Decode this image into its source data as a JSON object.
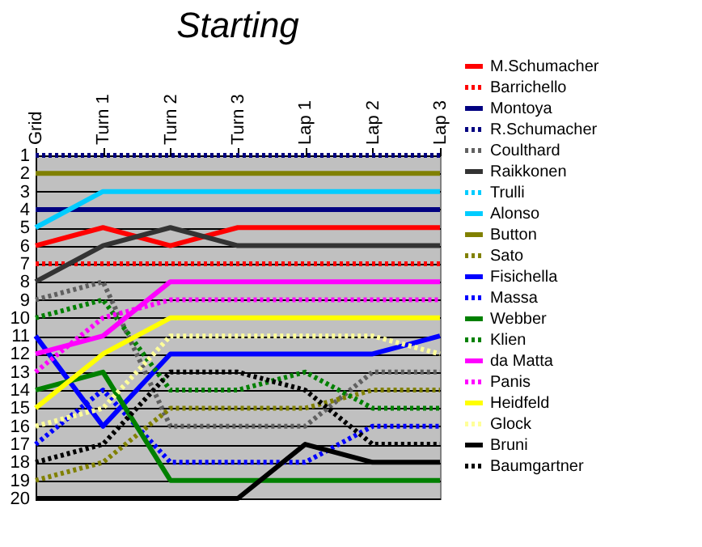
{
  "chart_data": {
    "type": "line",
    "title": "Starting",
    "categories": [
      "Grid",
      "Turn 1",
      "Turn 2",
      "Turn 3",
      "Lap 1",
      "Lap 2",
      "Lap 3"
    ],
    "ylim": [
      20,
      1
    ],
    "yticks": [
      1,
      2,
      3,
      4,
      5,
      6,
      7,
      8,
      9,
      10,
      11,
      12,
      13,
      14,
      15,
      16,
      17,
      18,
      19,
      20
    ],
    "grid": "y",
    "legend": "right",
    "marker": "none",
    "series": [
      {
        "name": "M.Schumacher",
        "color": "#ff0000",
        "line_style": "solid",
        "values": [
          6,
          5,
          6,
          5,
          5,
          5,
          5
        ]
      },
      {
        "name": "Barrichello",
        "color": "#ff0000",
        "line_style": "dotted",
        "values": [
          7,
          7,
          7,
          7,
          7,
          7,
          7
        ]
      },
      {
        "name": "Montoya",
        "color": "#000080",
        "line_style": "solid",
        "values": [
          4,
          4,
          4,
          4,
          4,
          4,
          4
        ]
      },
      {
        "name": "R.Schumacher",
        "color": "#000080",
        "line_style": "dotted",
        "values": [
          1,
          1,
          1,
          1,
          1,
          1,
          1
        ]
      },
      {
        "name": "Coulthard",
        "color": "#606060",
        "line_style": "dotted",
        "values": [
          9,
          8,
          16,
          16,
          16,
          13,
          13
        ]
      },
      {
        "name": "Raikkonen",
        "color": "#333333",
        "line_style": "solid",
        "values": [
          8,
          6,
          5,
          6,
          6,
          6,
          6
        ]
      },
      {
        "name": "Trulli",
        "color": "#00ccff",
        "line_style": "dotted",
        "values": [
          null,
          null,
          null,
          null,
          null,
          null,
          null
        ]
      },
      {
        "name": "Alonso",
        "color": "#00ccff",
        "line_style": "solid",
        "values": [
          5,
          3,
          3,
          3,
          3,
          3,
          3
        ]
      },
      {
        "name": "Button",
        "color": "#808000",
        "line_style": "solid",
        "values": [
          2,
          2,
          2,
          2,
          2,
          2,
          2
        ]
      },
      {
        "name": "Sato",
        "color": "#808000",
        "line_style": "dotted",
        "values": [
          19,
          18,
          15,
          15,
          15,
          14,
          14
        ]
      },
      {
        "name": "Fisichella",
        "color": "#0000ff",
        "line_style": "solid",
        "values": [
          11,
          16,
          12,
          12,
          12,
          12,
          11
        ]
      },
      {
        "name": "Massa",
        "color": "#0000ff",
        "line_style": "dotted",
        "values": [
          17,
          14,
          18,
          18,
          18,
          16,
          16
        ]
      },
      {
        "name": "Webber",
        "color": "#008000",
        "line_style": "solid",
        "values": [
          14,
          13,
          19,
          19,
          19,
          19,
          19
        ]
      },
      {
        "name": "Klien",
        "color": "#008000",
        "line_style": "dotted",
        "values": [
          10,
          9,
          14,
          14,
          13,
          15,
          15
        ]
      },
      {
        "name": "da Matta",
        "color": "#ff00ff",
        "line_style": "solid",
        "values": [
          12,
          11,
          8,
          8,
          8,
          8,
          8
        ]
      },
      {
        "name": "Panis",
        "color": "#ff00ff",
        "line_style": "dotted",
        "values": [
          13,
          10,
          9,
          9,
          9,
          9,
          9
        ]
      },
      {
        "name": "Heidfeld",
        "color": "#ffff00",
        "line_style": "solid",
        "values": [
          15,
          12,
          10,
          10,
          10,
          10,
          10
        ]
      },
      {
        "name": "Glock",
        "color": "#ffff99",
        "line_style": "dotted",
        "values": [
          16,
          15,
          11,
          11,
          11,
          11,
          12
        ]
      },
      {
        "name": "Bruni",
        "color": "#000000",
        "line_style": "solid",
        "values": [
          20,
          20,
          20,
          20,
          17,
          18,
          18
        ]
      },
      {
        "name": "Baumgartner",
        "color": "#000000",
        "line_style": "dotted",
        "values": [
          18,
          17,
          13,
          13,
          14,
          17,
          17
        ]
      }
    ]
  }
}
